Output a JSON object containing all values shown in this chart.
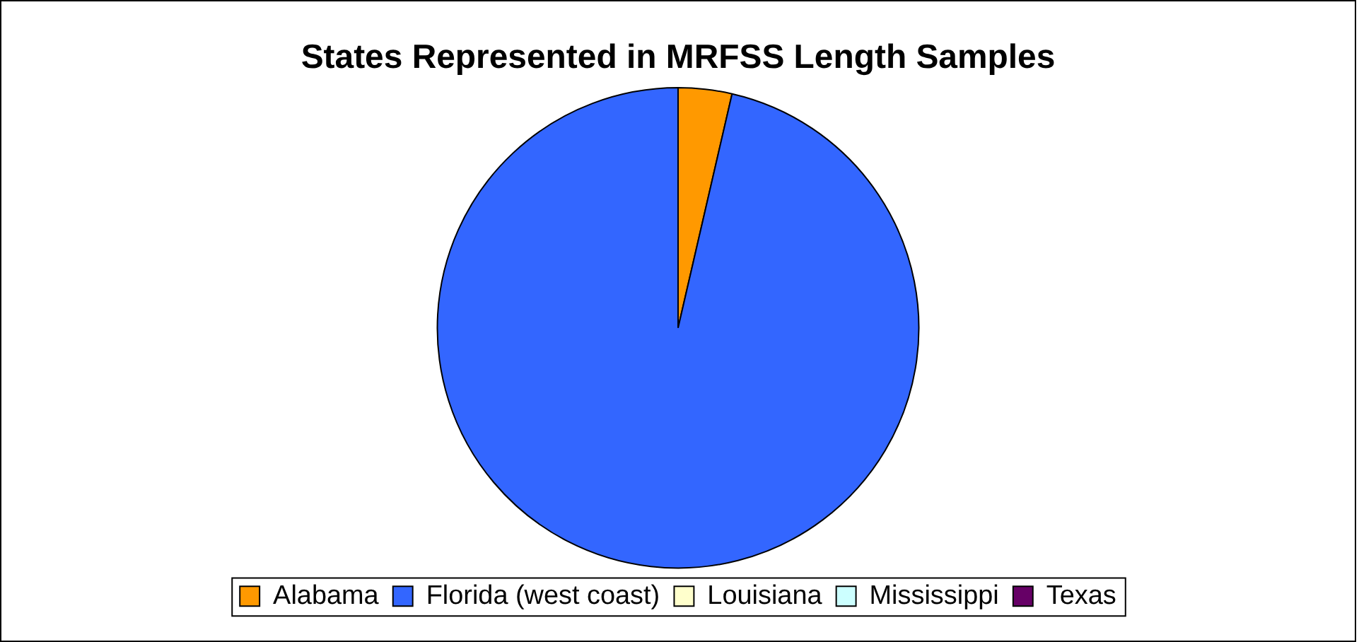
{
  "chart_data": {
    "type": "pie",
    "title": "States Represented in MRFSS Length Samples",
    "categories": [
      "Alabama",
      "Florida (west coast)",
      "Louisiana",
      "Mississippi",
      "Texas"
    ],
    "values": [
      3.6,
      96.4,
      0,
      0,
      0
    ],
    "colors": [
      "#ff9900",
      "#3366ff",
      "#ffffcc",
      "#ccffff",
      "#660066"
    ],
    "legend": "bottom"
  }
}
